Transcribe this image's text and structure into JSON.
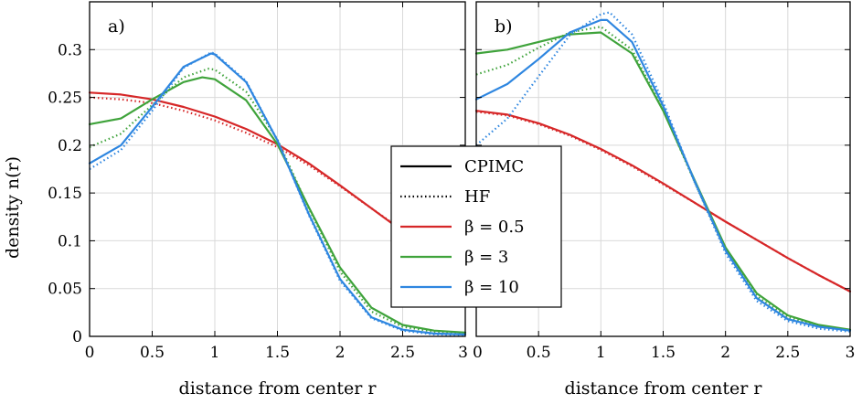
{
  "chart_data": [
    {
      "type": "line",
      "panel_label": "a)",
      "xlabel": "distance from center r",
      "ylabel": "density n(r)",
      "xlim": [
        0,
        3
      ],
      "ylim": [
        0,
        0.35
      ],
      "xticks": [
        "0",
        "0.5",
        "1",
        "1.5",
        "2",
        "2.5",
        "3"
      ],
      "yticks": [
        "0",
        "0.05",
        "0.1",
        "0.15",
        "0.2",
        "0.25",
        "0.3"
      ],
      "grid": true,
      "series": [
        {
          "name": "β = 0.5",
          "method": "CPIMC",
          "color": "#d62728",
          "x": [
            0,
            0.25,
            0.5,
            0.75,
            1.0,
            1.25,
            1.5,
            1.75,
            2.0,
            2.25,
            2.5,
            2.75,
            3.0
          ],
          "y": [
            0.255,
            0.253,
            0.248,
            0.24,
            0.23,
            0.217,
            0.201,
            0.181,
            0.158,
            0.134,
            0.11,
            0.085,
            0.06
          ]
        },
        {
          "name": "β = 0.5",
          "method": "HF",
          "color": "#d62728",
          "x": [
            0,
            0.25,
            0.5,
            0.75,
            1.0,
            1.25,
            1.5,
            1.75,
            2.0,
            2.25,
            2.5,
            2.75,
            3.0
          ],
          "y": [
            0.25,
            0.248,
            0.244,
            0.236,
            0.226,
            0.213,
            0.198,
            0.179,
            0.157,
            0.134,
            0.111,
            0.087,
            0.062
          ]
        },
        {
          "name": "β = 3",
          "method": "CPIMC",
          "color": "#3fa33b",
          "x": [
            0,
            0.25,
            0.5,
            0.75,
            0.9,
            1.0,
            1.25,
            1.5,
            1.75,
            2.0,
            2.25,
            2.5,
            2.75,
            3.0
          ],
          "y": [
            0.222,
            0.228,
            0.248,
            0.266,
            0.271,
            0.269,
            0.247,
            0.201,
            0.135,
            0.072,
            0.03,
            0.012,
            0.006,
            0.004
          ]
        },
        {
          "name": "β = 3",
          "method": "HF",
          "color": "#3fa33b",
          "x": [
            0,
            0.25,
            0.5,
            0.75,
            0.95,
            1.0,
            1.25,
            1.5,
            1.75,
            2.0,
            2.25,
            2.5,
            2.75,
            3.0
          ],
          "y": [
            0.198,
            0.212,
            0.242,
            0.271,
            0.28,
            0.279,
            0.256,
            0.206,
            0.134,
            0.068,
            0.026,
            0.01,
            0.005,
            0.003
          ]
        },
        {
          "name": "β = 10",
          "method": "CPIMC",
          "color": "#2e86e0",
          "x": [
            0,
            0.25,
            0.5,
            0.75,
            0.97,
            1.0,
            1.25,
            1.5,
            1.75,
            2.0,
            2.25,
            2.5,
            2.75,
            3.0
          ],
          "y": [
            0.181,
            0.2,
            0.24,
            0.282,
            0.296,
            0.295,
            0.266,
            0.205,
            0.128,
            0.06,
            0.02,
            0.007,
            0.003,
            0.002
          ]
        },
        {
          "name": "β = 10",
          "method": "HF",
          "color": "#2e86e0",
          "x": [
            0,
            0.25,
            0.5,
            0.75,
            0.97,
            1.0,
            1.25,
            1.5,
            1.75,
            2.0,
            2.25,
            2.5,
            2.75,
            3.0
          ],
          "y": [
            0.175,
            0.195,
            0.236,
            0.281,
            0.297,
            0.296,
            0.267,
            0.205,
            0.127,
            0.058,
            0.019,
            0.006,
            0.002,
            0.001
          ]
        }
      ]
    },
    {
      "type": "line",
      "panel_label": "b)",
      "xlabel": "distance from center r",
      "ylabel": "",
      "xlim": [
        0,
        3
      ],
      "ylim": [
        0,
        0.35
      ],
      "xticks": [
        "0",
        "0.5",
        "1",
        "1.5",
        "2",
        "2.5",
        "3"
      ],
      "yticks": [],
      "grid": true,
      "series": [
        {
          "name": "β = 0.5",
          "method": "CPIMC",
          "color": "#d62728",
          "x": [
            0,
            0.25,
            0.5,
            0.75,
            1.0,
            1.25,
            1.5,
            1.75,
            2.0,
            2.25,
            2.5,
            2.75,
            3.0
          ],
          "y": [
            0.236,
            0.232,
            0.223,
            0.211,
            0.196,
            0.179,
            0.16,
            0.14,
            0.12,
            0.101,
            0.082,
            0.064,
            0.047
          ]
        },
        {
          "name": "β = 0.5",
          "method": "HF",
          "color": "#d62728",
          "x": [
            0,
            0.25,
            0.5,
            0.75,
            1.0,
            1.25,
            1.5,
            1.75,
            2.0,
            2.25,
            2.5,
            2.75,
            3.0
          ],
          "y": [
            0.235,
            0.231,
            0.222,
            0.21,
            0.195,
            0.178,
            0.159,
            0.14,
            0.12,
            0.101,
            0.082,
            0.064,
            0.047
          ]
        },
        {
          "name": "β = 3",
          "method": "CPIMC",
          "color": "#3fa33b",
          "x": [
            0,
            0.25,
            0.5,
            0.75,
            1.0,
            1.25,
            1.5,
            1.75,
            2.0,
            2.25,
            2.5,
            2.75,
            3.0
          ],
          "y": [
            0.296,
            0.3,
            0.308,
            0.316,
            0.318,
            0.296,
            0.236,
            0.164,
            0.093,
            0.045,
            0.022,
            0.012,
            0.007
          ]
        },
        {
          "name": "β = 3",
          "method": "HF",
          "color": "#3fa33b",
          "x": [
            0,
            0.25,
            0.5,
            0.75,
            1.0,
            1.25,
            1.5,
            1.75,
            2.0,
            2.25,
            2.5,
            2.75,
            3.0
          ],
          "y": [
            0.274,
            0.284,
            0.302,
            0.318,
            0.324,
            0.3,
            0.237,
            0.162,
            0.09,
            0.042,
            0.02,
            0.011,
            0.006
          ]
        },
        {
          "name": "β = 10",
          "method": "CPIMC",
          "color": "#2e86e0",
          "x": [
            0,
            0.25,
            0.5,
            0.75,
            1.0,
            1.05,
            1.25,
            1.5,
            1.75,
            2.0,
            2.25,
            2.5,
            2.75,
            3.0
          ],
          "y": [
            0.248,
            0.264,
            0.29,
            0.318,
            0.331,
            0.331,
            0.308,
            0.241,
            0.163,
            0.09,
            0.04,
            0.018,
            0.01,
            0.006
          ]
        },
        {
          "name": "β = 10",
          "method": "HF",
          "color": "#2e86e0",
          "x": [
            0,
            0.25,
            0.5,
            0.75,
            1.0,
            1.07,
            1.25,
            1.5,
            1.75,
            2.0,
            2.25,
            2.5,
            2.75,
            3.0
          ],
          "y": [
            0.2,
            0.228,
            0.272,
            0.315,
            0.337,
            0.339,
            0.316,
            0.245,
            0.162,
            0.087,
            0.037,
            0.016,
            0.008,
            0.005
          ]
        }
      ]
    }
  ],
  "legend": {
    "placement": "center",
    "entries": [
      {
        "label": "CPIMC",
        "style": "solid",
        "color": "#000000"
      },
      {
        "label": "HF",
        "style": "dotted",
        "color": "#000000"
      },
      {
        "label": "β = 0.5",
        "style": "solid",
        "color": "#d62728"
      },
      {
        "label": "β = 3",
        "style": "solid",
        "color": "#3fa33b"
      },
      {
        "label": "β = 10",
        "style": "solid",
        "color": "#2e86e0"
      }
    ]
  }
}
